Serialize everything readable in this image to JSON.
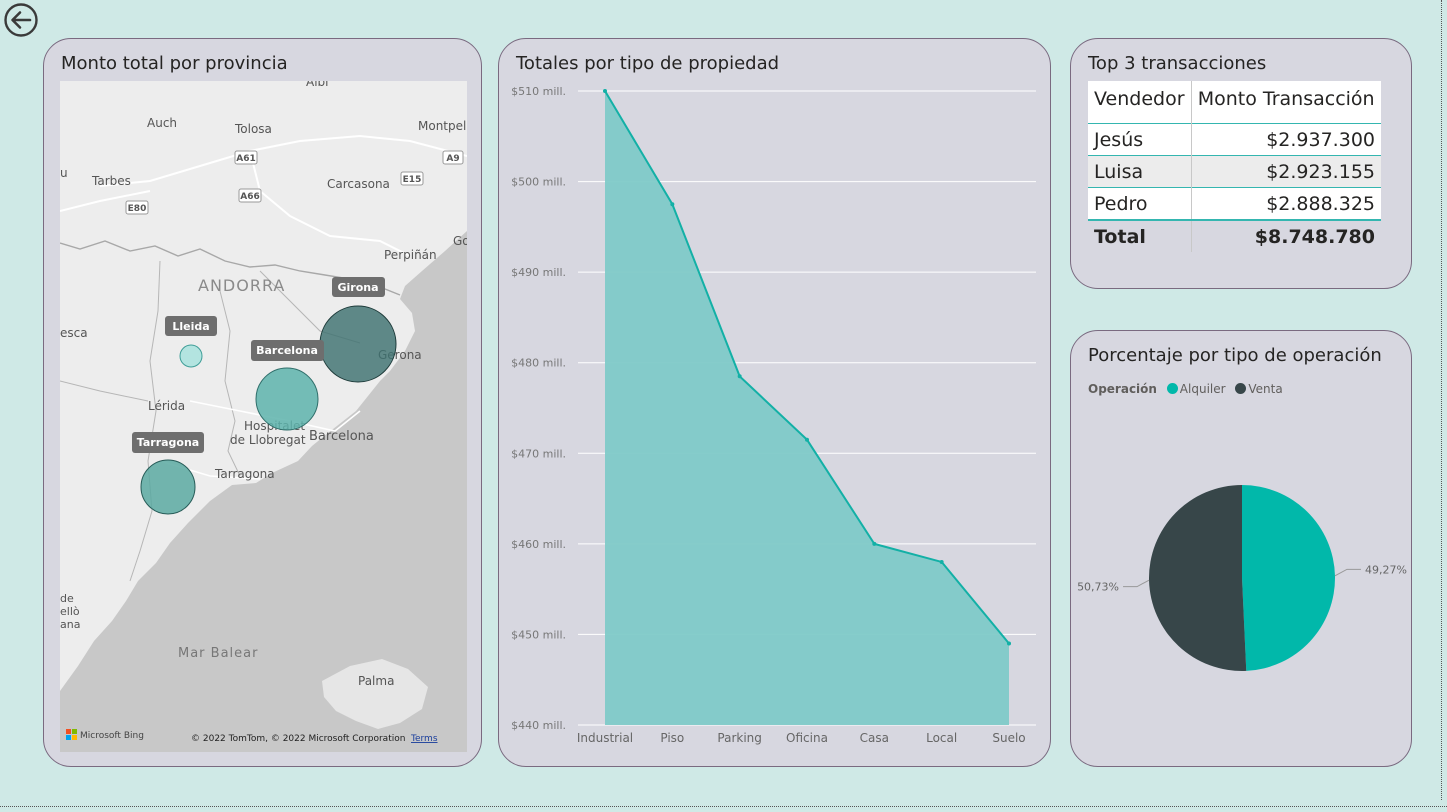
{
  "colors": {
    "alquiler": "#01b8aa",
    "venta": "#374649",
    "area_fill": "#7fcac8",
    "area_line": "#13b0a6"
  },
  "map": {
    "title": "Monto total por provincia",
    "attribution_logo": "Microsoft Bing",
    "copyright": "© 2022 TomTom, © 2022 Microsoft Corporation",
    "terms": "Terms",
    "place_labels": {
      "albi": "Albi",
      "auch": "Auch",
      "tolosa": "Tolosa",
      "montpellier": "Montpell",
      "tarbes": "Tarbes",
      "carcasona": "Carcasona",
      "perpinan": "Perpiñán",
      "andorra": "ANDORRA",
      "huesca": "esca",
      "lerida": "Lérida",
      "hospitalet": "Hospitalet de Llobregat",
      "barcelona": "Barcelona",
      "gerona": "Gerona",
      "tarragona": "Tarragona",
      "mar_balear": "Mar Balear",
      "palma": "Palma",
      "vinaros": "de ellò ana",
      "golfo": "Go",
      "auch_left": "u"
    },
    "roads": {
      "a61": "A61",
      "a66": "A66",
      "e80": "E80",
      "e15": "E15",
      "a9": "A9"
    },
    "bubbles": [
      {
        "name": "Girona"
      },
      {
        "name": "Lleida"
      },
      {
        "name": "Barcelona"
      },
      {
        "name": "Tarragona"
      }
    ]
  },
  "chart_data": [
    {
      "type": "area",
      "title": "Totales por tipo de propiedad",
      "categories": [
        "Industrial",
        "Piso",
        "Parking",
        "Oficina",
        "Casa",
        "Local",
        "Suelo"
      ],
      "values": [
        510,
        497.5,
        478.5,
        471.5,
        460,
        458,
        449
      ],
      "unit": "mill.",
      "ylim": [
        440,
        510
      ],
      "yticks": [
        440,
        450,
        460,
        470,
        480,
        490,
        500,
        510
      ],
      "ytick_labels": [
        "$440 mill.",
        "$450 mill.",
        "$460 mill.",
        "$470 mill.",
        "$480 mill.",
        "$490 mill.",
        "$500 mill.",
        "$510 mill."
      ],
      "grid": true
    },
    {
      "type": "pie",
      "title": "Porcentaje por tipo de operación",
      "legend_title": "Operación",
      "legend_position": "top-left",
      "slices": [
        {
          "name": "Alquiler",
          "value": 49.27,
          "label": "49,27%"
        },
        {
          "name": "Venta",
          "value": 50.73,
          "label": "50,73%"
        }
      ]
    },
    {
      "type": "table",
      "title": "Top 3 transacciones",
      "columns": [
        "Vendedor",
        "Monto Transacción"
      ],
      "rows": [
        {
          "vendedor": "Jesús",
          "monto": "$2.937.300"
        },
        {
          "vendedor": "Luisa",
          "monto": "$2.923.155"
        },
        {
          "vendedor": "Pedro",
          "monto": "$2.888.325"
        }
      ],
      "total_label": "Total",
      "total_value": "$8.748.780"
    }
  ]
}
